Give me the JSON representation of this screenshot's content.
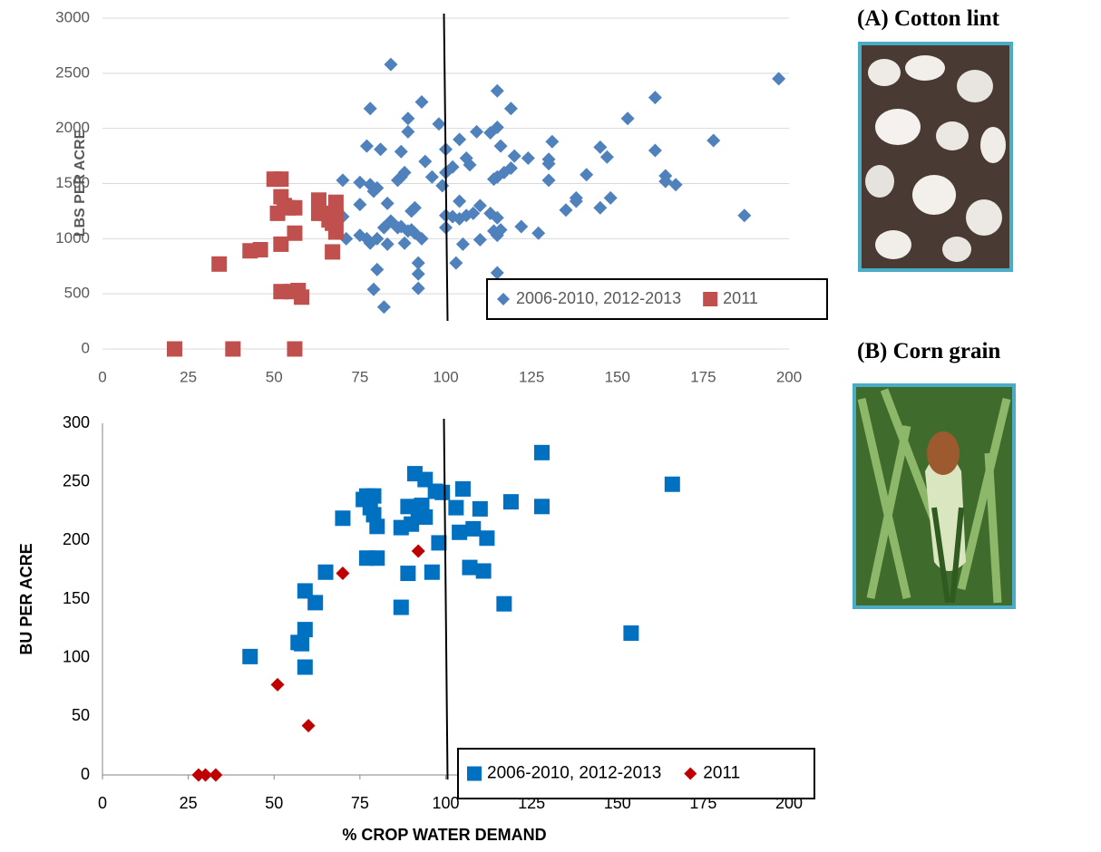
{
  "chart_data": [
    {
      "type": "scatter",
      "y_label": "LBS PER ACRE",
      "xlim": [
        0,
        200
      ],
      "ylim": [
        0,
        3000
      ],
      "xticks": [
        0,
        25,
        50,
        75,
        100,
        125,
        150,
        175,
        200
      ],
      "yticks": [
        0,
        500,
        1000,
        1500,
        2000,
        2500,
        3000
      ],
      "grid": true,
      "vline": 100,
      "legend": "lower right",
      "series": [
        {
          "name": "2006-2010, 2012-2013",
          "color": "#4f81bd",
          "marker": "diamond",
          "x": [
            84,
            197,
            115,
            93,
            161,
            78,
            119,
            89,
            153,
            98,
            89,
            109,
            115,
            113,
            104,
            100,
            77,
            81,
            87,
            116,
            120,
            124,
            131,
            145,
            161,
            178,
            106,
            107,
            102,
            94,
            130,
            130,
            147,
            119,
            117,
            88,
            87,
            86,
            96,
            115,
            114,
            141,
            164,
            164,
            167,
            130,
            75,
            70,
            78,
            80,
            79,
            99,
            113,
            115,
            83,
            91,
            90,
            104,
            138,
            138,
            135,
            145,
            148,
            70,
            75,
            82,
            86,
            87,
            84,
            90,
            93,
            89,
            88,
            83,
            80,
            77,
            78,
            75,
            71,
            100,
            100,
            102,
            104,
            106,
            108,
            110,
            114,
            116,
            115,
            122,
            127,
            110,
            105,
            92,
            92,
            80,
            79,
            92,
            103,
            115,
            82,
            187,
            100,
            91
          ],
          "values": [
            2580,
            2450,
            2340,
            2240,
            2280,
            2180,
            2180,
            2090,
            2090,
            2040,
            1970,
            1970,
            2010,
            1960,
            1900,
            1810,
            1840,
            1810,
            1790,
            1840,
            1750,
            1730,
            1880,
            1830,
            1800,
            1890,
            1730,
            1670,
            1650,
            1700,
            1720,
            1680,
            1740,
            1640,
            1600,
            1600,
            1560,
            1530,
            1560,
            1560,
            1540,
            1580,
            1570,
            1520,
            1490,
            1530,
            1510,
            1530,
            1490,
            1460,
            1430,
            1480,
            1230,
            1190,
            1320,
            1280,
            1250,
            1340,
            1370,
            1340,
            1260,
            1280,
            1370,
            1200,
            1310,
            1100,
            1100,
            1110,
            1160,
            1080,
            1000,
            1070,
            960,
            950,
            1000,
            1000,
            960,
            1030,
            1000,
            1100,
            1210,
            1200,
            1180,
            1210,
            1230,
            1300,
            1070,
            1080,
            1030,
            1110,
            1050,
            990,
            950,
            780,
            680,
            720,
            540,
            550,
            780,
            690,
            380,
            1210,
            1600,
            1050
          ]
        },
        {
          "name": "2011",
          "color": "#c0504d",
          "marker": "square",
          "x": [
            21,
            38,
            56,
            34,
            43,
            46,
            50,
            52,
            52,
            51,
            54,
            53,
            56,
            56,
            52,
            52,
            55,
            57,
            58,
            63,
            63,
            65,
            66,
            67,
            68,
            68,
            68,
            67
          ],
          "values": [
            0,
            0,
            0,
            770,
            890,
            900,
            1540,
            1540,
            1380,
            1230,
            1280,
            1300,
            1280,
            1050,
            950,
            520,
            520,
            530,
            470,
            1350,
            1230,
            1230,
            1170,
            1140,
            1330,
            1200,
            1060,
            880
          ]
        }
      ]
    },
    {
      "type": "scatter",
      "x_label": "% CROP WATER DEMAND",
      "y_label": "BU PER ACRE",
      "xlim": [
        0,
        200
      ],
      "ylim": [
        0,
        300
      ],
      "xticks": [
        0,
        25,
        50,
        75,
        100,
        125,
        150,
        175,
        200
      ],
      "yticks": [
        0,
        50,
        100,
        150,
        200,
        250,
        300
      ],
      "grid": false,
      "vline": 100,
      "legend": "lower right",
      "series": [
        {
          "name": "2006-2010, 2012-2013",
          "color": "#0070c0",
          "marker": "square",
          "x": [
            128,
            166,
            91,
            93,
            94,
            99,
            97,
            105,
            77,
            76,
            79,
            78,
            79,
            80,
            70,
            89,
            87,
            90,
            94,
            92,
            103,
            110,
            108,
            104,
            112,
            98,
            119,
            128,
            77,
            80,
            65,
            89,
            96,
            107,
            111,
            59,
            62,
            117,
            87,
            59,
            57,
            58,
            43,
            59,
            154
          ],
          "values": [
            275,
            248,
            257,
            230,
            252,
            241,
            242,
            244,
            238,
            235,
            238,
            228,
            222,
            212,
            219,
            229,
            211,
            214,
            220,
            222,
            228,
            227,
            210,
            207,
            202,
            198,
            233,
            229,
            185,
            185,
            173,
            172,
            173,
            177,
            174,
            157,
            147,
            146,
            143,
            124,
            113,
            112,
            101,
            92,
            121
          ]
        },
        {
          "name": "2011",
          "color": "#c00000",
          "marker": "diamond",
          "x": [
            28,
            30,
            33,
            51,
            60,
            70,
            92
          ],
          "values": [
            0,
            0,
            0,
            77,
            42,
            172,
            191
          ]
        }
      ]
    }
  ],
  "images": [
    {
      "caption": "(A) Cotton lint"
    },
    {
      "caption": "(B) Corn grain"
    }
  ]
}
